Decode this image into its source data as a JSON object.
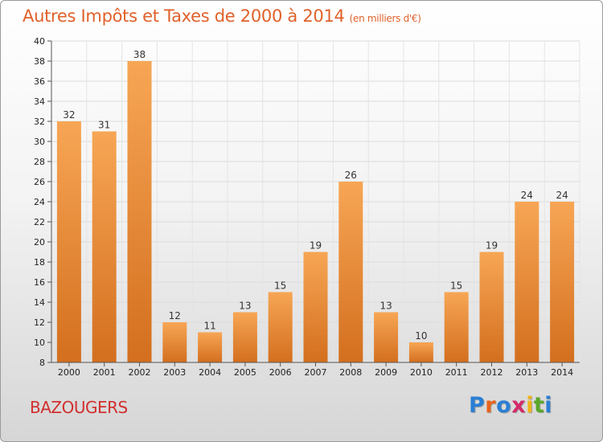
{
  "title": "Autres Impôts et Taxes de 2000 à 2014",
  "title_unit": "(en milliers d'€)",
  "commune": "BAZOUGERS",
  "logo": {
    "letters": [
      "P",
      "r",
      "o",
      "x",
      "i",
      "t",
      "i"
    ],
    "colors": [
      "#2a7fd4",
      "#e8641c",
      "#2a7fd4",
      "#d42a6a",
      "#f2b318",
      "#5aa82a",
      "#2a7fd4"
    ]
  },
  "colors": {
    "title": "#e0612a",
    "bar_top": "#f7a655",
    "bar_bottom": "#d36f1e",
    "commune": "#d0302e"
  },
  "chart_data": {
    "type": "bar",
    "categories": [
      "2000",
      "2001",
      "2002",
      "2003",
      "2004",
      "2005",
      "2006",
      "2007",
      "2008",
      "2009",
      "2010",
      "2011",
      "2012",
      "2013",
      "2014"
    ],
    "values": [
      32,
      31,
      38,
      12,
      11,
      13,
      15,
      19,
      26,
      13,
      10,
      15,
      19,
      24,
      24
    ],
    "ylim": [
      8,
      40
    ],
    "yticks": [
      8,
      10,
      12,
      14,
      16,
      18,
      20,
      22,
      24,
      26,
      28,
      30,
      32,
      34,
      36,
      38,
      40
    ],
    "grid": true
  }
}
